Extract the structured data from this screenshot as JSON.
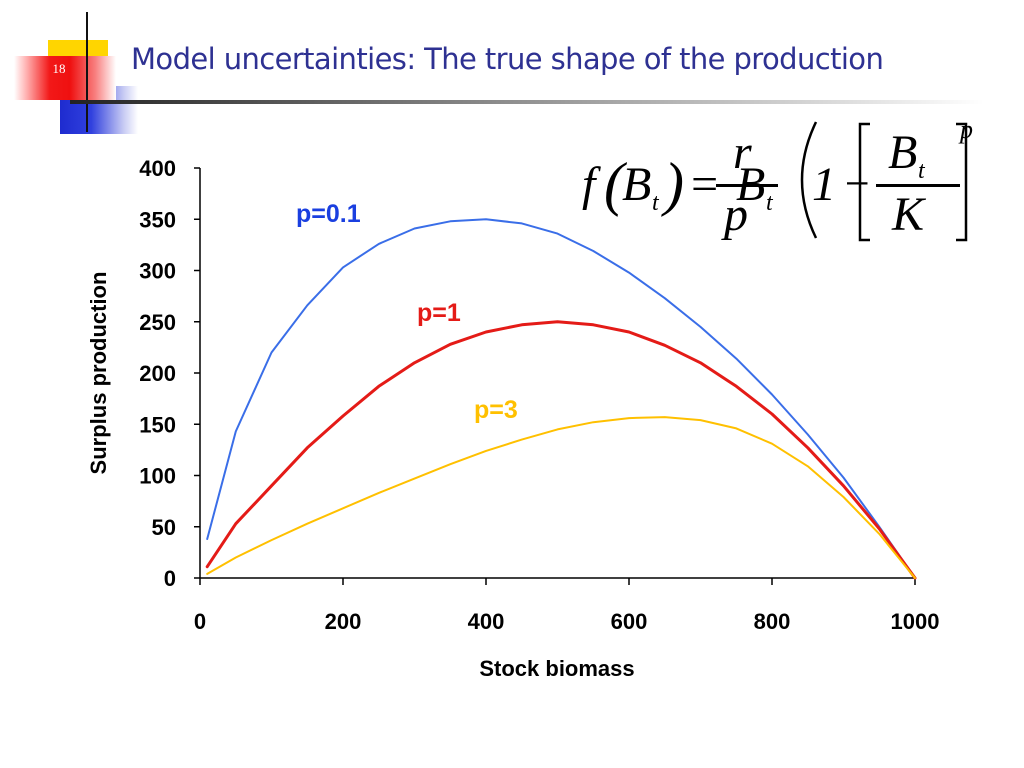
{
  "slide": {
    "number": "18",
    "title": "Model uncertainties: The true shape of the production"
  },
  "formula": {
    "f": "f",
    "B": "B",
    "t": "t",
    "equals": "=",
    "r": "r",
    "p": "p",
    "one": "1",
    "minus": "−",
    "K": "K"
  },
  "chart_data": {
    "type": "line",
    "title": "",
    "xlabel": "Stock biomass",
    "ylabel": "Surplus production",
    "xlim": [
      0,
      1000
    ],
    "ylim": [
      0,
      400
    ],
    "xticks": [
      0,
      200,
      400,
      600,
      800,
      1000
    ],
    "yticks": [
      0,
      50,
      100,
      150,
      200,
      250,
      300,
      350,
      400
    ],
    "grid": false,
    "series": [
      {
        "name": "p=0.1",
        "color": "#3a6ee8",
        "x": [
          10,
          50,
          100,
          150,
          200,
          250,
          300,
          350,
          400,
          450,
          500,
          550,
          600,
          650,
          700,
          750,
          800,
          850,
          900,
          950,
          1000
        ],
        "y": [
          38,
          143,
          220,
          266,
          303,
          326,
          341,
          348,
          350,
          346,
          336,
          319,
          298,
          273,
          245,
          214,
          179,
          140,
          98,
          50,
          0
        ]
      },
      {
        "name": "p=1",
        "color": "#e41b17",
        "x": [
          10,
          50,
          100,
          150,
          200,
          250,
          300,
          350,
          400,
          450,
          500,
          550,
          600,
          650,
          700,
          750,
          800,
          850,
          900,
          950,
          1000
        ],
        "y": [
          11,
          53,
          90,
          127,
          158,
          187,
          210,
          228,
          240,
          247,
          250,
          247,
          240,
          227,
          210,
          187,
          160,
          127,
          90,
          48,
          0
        ]
      },
      {
        "name": "p=3",
        "color": "#ffc000",
        "x": [
          10,
          50,
          100,
          150,
          200,
          250,
          300,
          350,
          400,
          450,
          500,
          550,
          600,
          650,
          700,
          750,
          800,
          850,
          900,
          950,
          1000
        ],
        "y": [
          4,
          20,
          37,
          53,
          68,
          83,
          97,
          111,
          124,
          135,
          145,
          152,
          156,
          157,
          154,
          146,
          131,
          109,
          79,
          43,
          0
        ]
      }
    ]
  }
}
